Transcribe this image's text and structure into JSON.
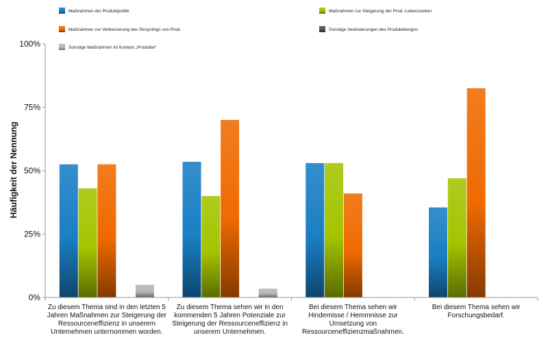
{
  "chart_data": {
    "type": "bar",
    "ylabel": "Häufigkeit der Nennung",
    "xlabel": "",
    "ylim": [
      0,
      100
    ],
    "yticks": [
      "0%",
      "25%",
      "50%",
      "75%",
      "100%"
    ],
    "legend_position": "top",
    "categories": [
      [
        "Zu diesem Thema sind in den letzten 5",
        "Jahren Maßnahmen zur Steigerung der",
        "Ressourceneffizienz in unserem",
        "Unternehmen unternommen worden."
      ],
      [
        "Zu diesem Thema sehen wir in den",
        "kommenden 5 Jahren Potenziale zur",
        "Steigerung der Ressourceneffizienz in",
        "unserem Unternehmen."
      ],
      [
        "Bei diesem Thema sehen wir",
        "Hindernisse / Hemmnisse zur",
        "Umsetzung von",
        "Ressourceneffizienzmaßnahmen."
      ],
      [
        "Bei diesem Thema sehen wir",
        "Forschungsbedarf."
      ]
    ],
    "series": [
      {
        "name": "Maßnahmen der Produktpolitik",
        "color": "#1a7fc4",
        "values": [
          52.5,
          53.5,
          53,
          35.5
        ]
      },
      {
        "name": "Maßnahmen zur Steigerung der Prod.-Lebenszeiten",
        "color": "#a4c400",
        "values": [
          43,
          40,
          53,
          47
        ]
      },
      {
        "name": "Maßnahmen zur Verbesserung des Recyclings von Prod.",
        "color": "#f06a00",
        "values": [
          52.5,
          70,
          41,
          82.5
        ]
      },
      {
        "name": "Sonstige Veränderungen des Produktdesigns",
        "color": "#555555",
        "values": [
          0,
          0,
          0,
          0
        ]
      },
      {
        "name": "Sonstige Maßnahmen im Kontext „Produkte“",
        "color": "#b8b8b8",
        "values": [
          5,
          3.5,
          0,
          0
        ]
      }
    ]
  }
}
